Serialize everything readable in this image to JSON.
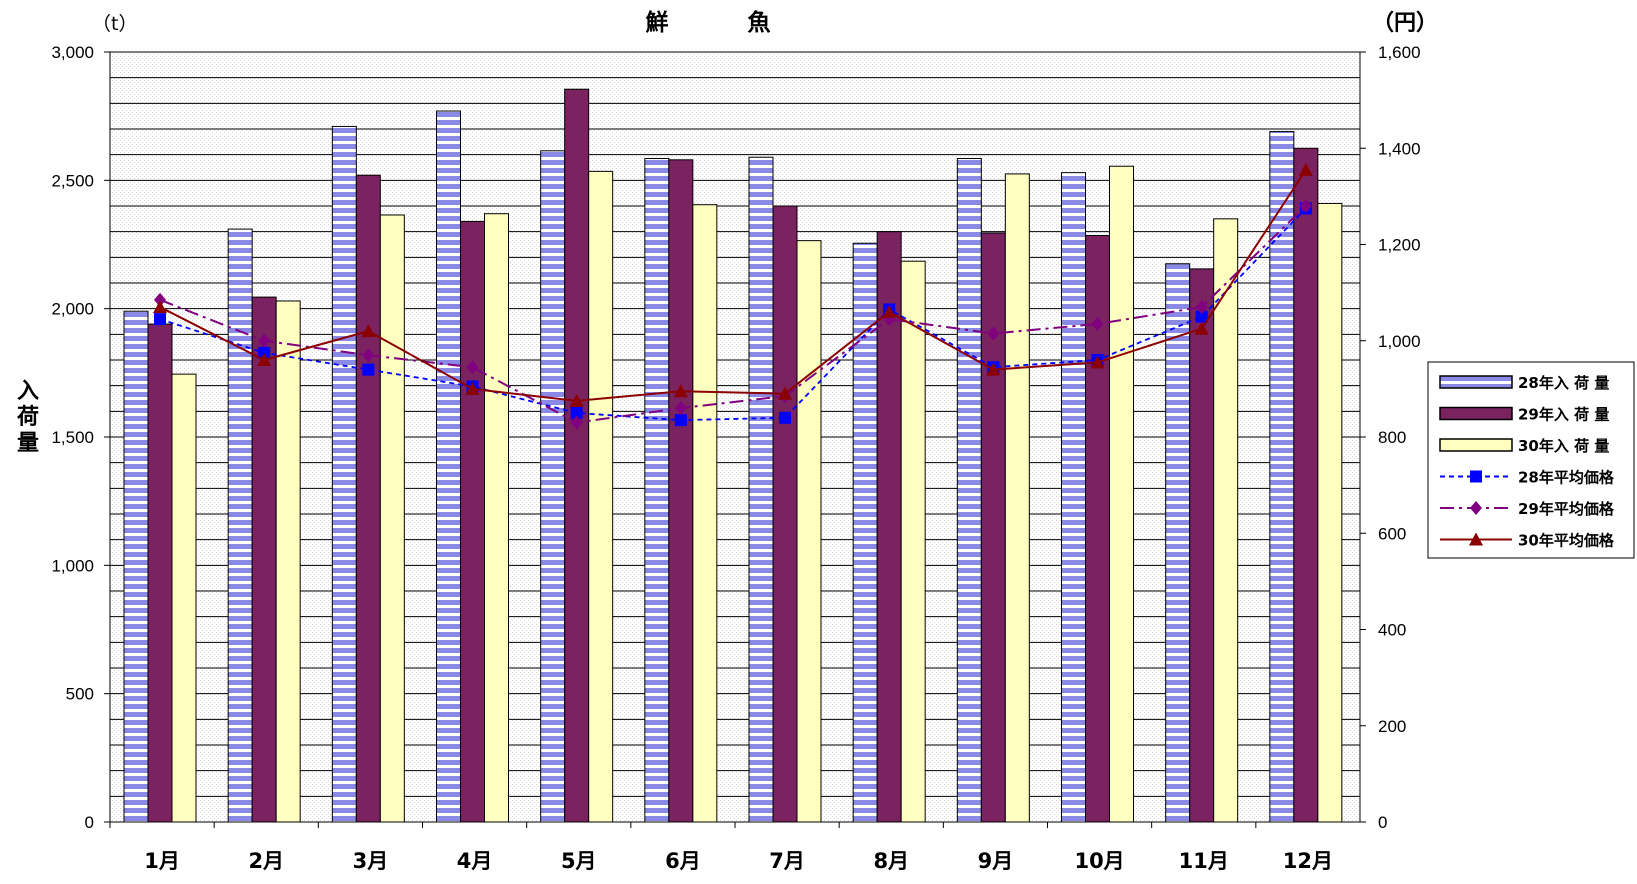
{
  "chart_data": {
    "type": "bar",
    "title": "鮮　魚",
    "ylabel": "入荷量",
    "y_unit": "（t）",
    "y2_unit": "（円）",
    "categories": [
      "1月",
      "2月",
      "3月",
      "4月",
      "5月",
      "6月",
      "7月",
      "8月",
      "9月",
      "10月",
      "11月",
      "12月"
    ],
    "ylim": [
      0,
      3000
    ],
    "y2lim": [
      0,
      1600
    ],
    "yticks": [
      "0",
      "500",
      "1,000",
      "1,500",
      "2,000",
      "2,500",
      "3,000"
    ],
    "y2ticks": [
      "0",
      "200",
      "400",
      "600",
      "800",
      "1,000",
      "1,200",
      "1,400",
      "1,600"
    ],
    "grid": true,
    "legend_position": "right",
    "series": [
      {
        "name": "28年入 荷 量",
        "kind": "bar",
        "color": "#8080e0",
        "values": [
          1990,
          2310,
          2710,
          2770,
          2615,
          2585,
          2590,
          2255,
          2585,
          2530,
          2175,
          2690
        ]
      },
      {
        "name": "29年入 荷 量",
        "kind": "bar",
        "color": "#7b2260",
        "values": [
          1940,
          2045,
          2520,
          2340,
          2855,
          2580,
          2400,
          2300,
          2295,
          2285,
          2155,
          2625
        ]
      },
      {
        "name": "30年入 荷 量",
        "kind": "bar",
        "color": "#ffffc0",
        "values": [
          1745,
          2030,
          2365,
          2370,
          2535,
          2405,
          2265,
          2185,
          2525,
          2555,
          2350,
          2410
        ]
      },
      {
        "name": "28年平均価格",
        "kind": "line",
        "axis": "right",
        "color": "#0000ff",
        "marker": "square",
        "values": [
          1045,
          975,
          940,
          905,
          850,
          835,
          840,
          1065,
          945,
          960,
          1050,
          1275
        ]
      },
      {
        "name": "29年平均価格",
        "kind": "line",
        "axis": "right",
        "color": "#800080",
        "marker": "diamond",
        "values": [
          1085,
          1000,
          970,
          945,
          830,
          860,
          885,
          1045,
          1015,
          1035,
          1070,
          1280
        ]
      },
      {
        "name": "30年平均価格",
        "kind": "line",
        "axis": "right",
        "color": "#8b0000",
        "marker": "triangle",
        "values": [
          1070,
          960,
          1020,
          900,
          875,
          895,
          890,
          1060,
          940,
          955,
          1025,
          1355
        ]
      }
    ]
  }
}
